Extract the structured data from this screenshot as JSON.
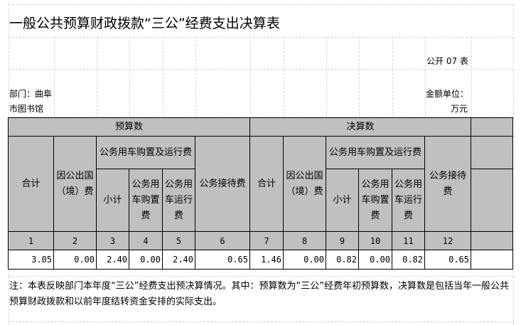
{
  "title": "一般公共预算财政拨款“三公”经费支出决算表",
  "table_code": "公开 07 表",
  "department_label": "部门：曲阜",
  "department_label_2": "市图书馆",
  "unit_label": "金额单位：",
  "unit_value": "万元",
  "headers": {
    "budget": "预算数",
    "final": "决算数",
    "total": "合计",
    "abroad": "因公出国（境）费",
    "vehicle": "公务用车购置及运行费",
    "subtotal": "小计",
    "vehicle_purchase": "公务用车购置费",
    "vehicle_operation": "公务用车运行费",
    "reception": "公务接待费"
  },
  "column_numbers": [
    "1",
    "2",
    "3",
    "4",
    "5",
    "6",
    "7",
    "8",
    "9",
    "10",
    "11",
    "12"
  ],
  "values": [
    "3.05",
    "0.00",
    "2.40",
    "0.00",
    "2.40",
    "0.65",
    "1.46",
    "0.00",
    "0.82",
    "0.00",
    "0.82",
    "0.65"
  ],
  "note": "注：本表反映部门本年度“三公”经费支出预决算情况。其中：预算数为“三公”经费年初预算数，决算数是包括当年一般公共预算财政拨款和以前年度结转资金安排的实际支出。"
}
